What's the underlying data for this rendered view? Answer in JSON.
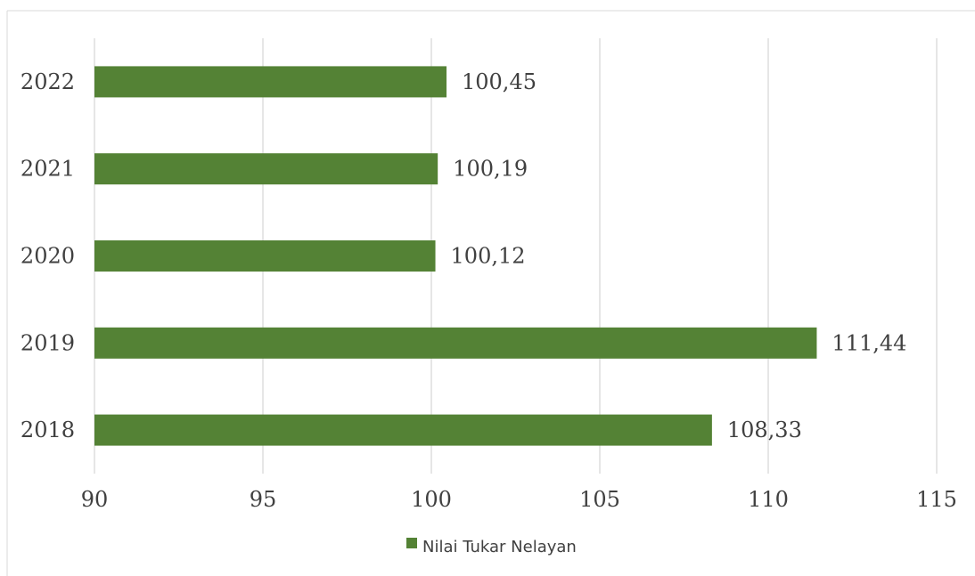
{
  "chart_data": {
    "type": "bar",
    "orientation": "horizontal",
    "categories": [
      "2022",
      "2021",
      "2020",
      "2019",
      "2018"
    ],
    "series": [
      {
        "name": "Nilai Tukar Nelayan",
        "values": [
          100.45,
          100.19,
          100.12,
          111.44,
          108.33
        ],
        "labels": [
          "100,45",
          "100,19",
          "100,12",
          "111,44",
          "108,33"
        ],
        "color": "#548235"
      }
    ],
    "xlim": [
      90,
      115
    ],
    "x_ticks": [
      "90",
      "95",
      "100",
      "105",
      "110",
      "115"
    ],
    "grid": "vertical",
    "legend_position": "bottom",
    "title": "",
    "xlabel": "",
    "ylabel": ""
  }
}
